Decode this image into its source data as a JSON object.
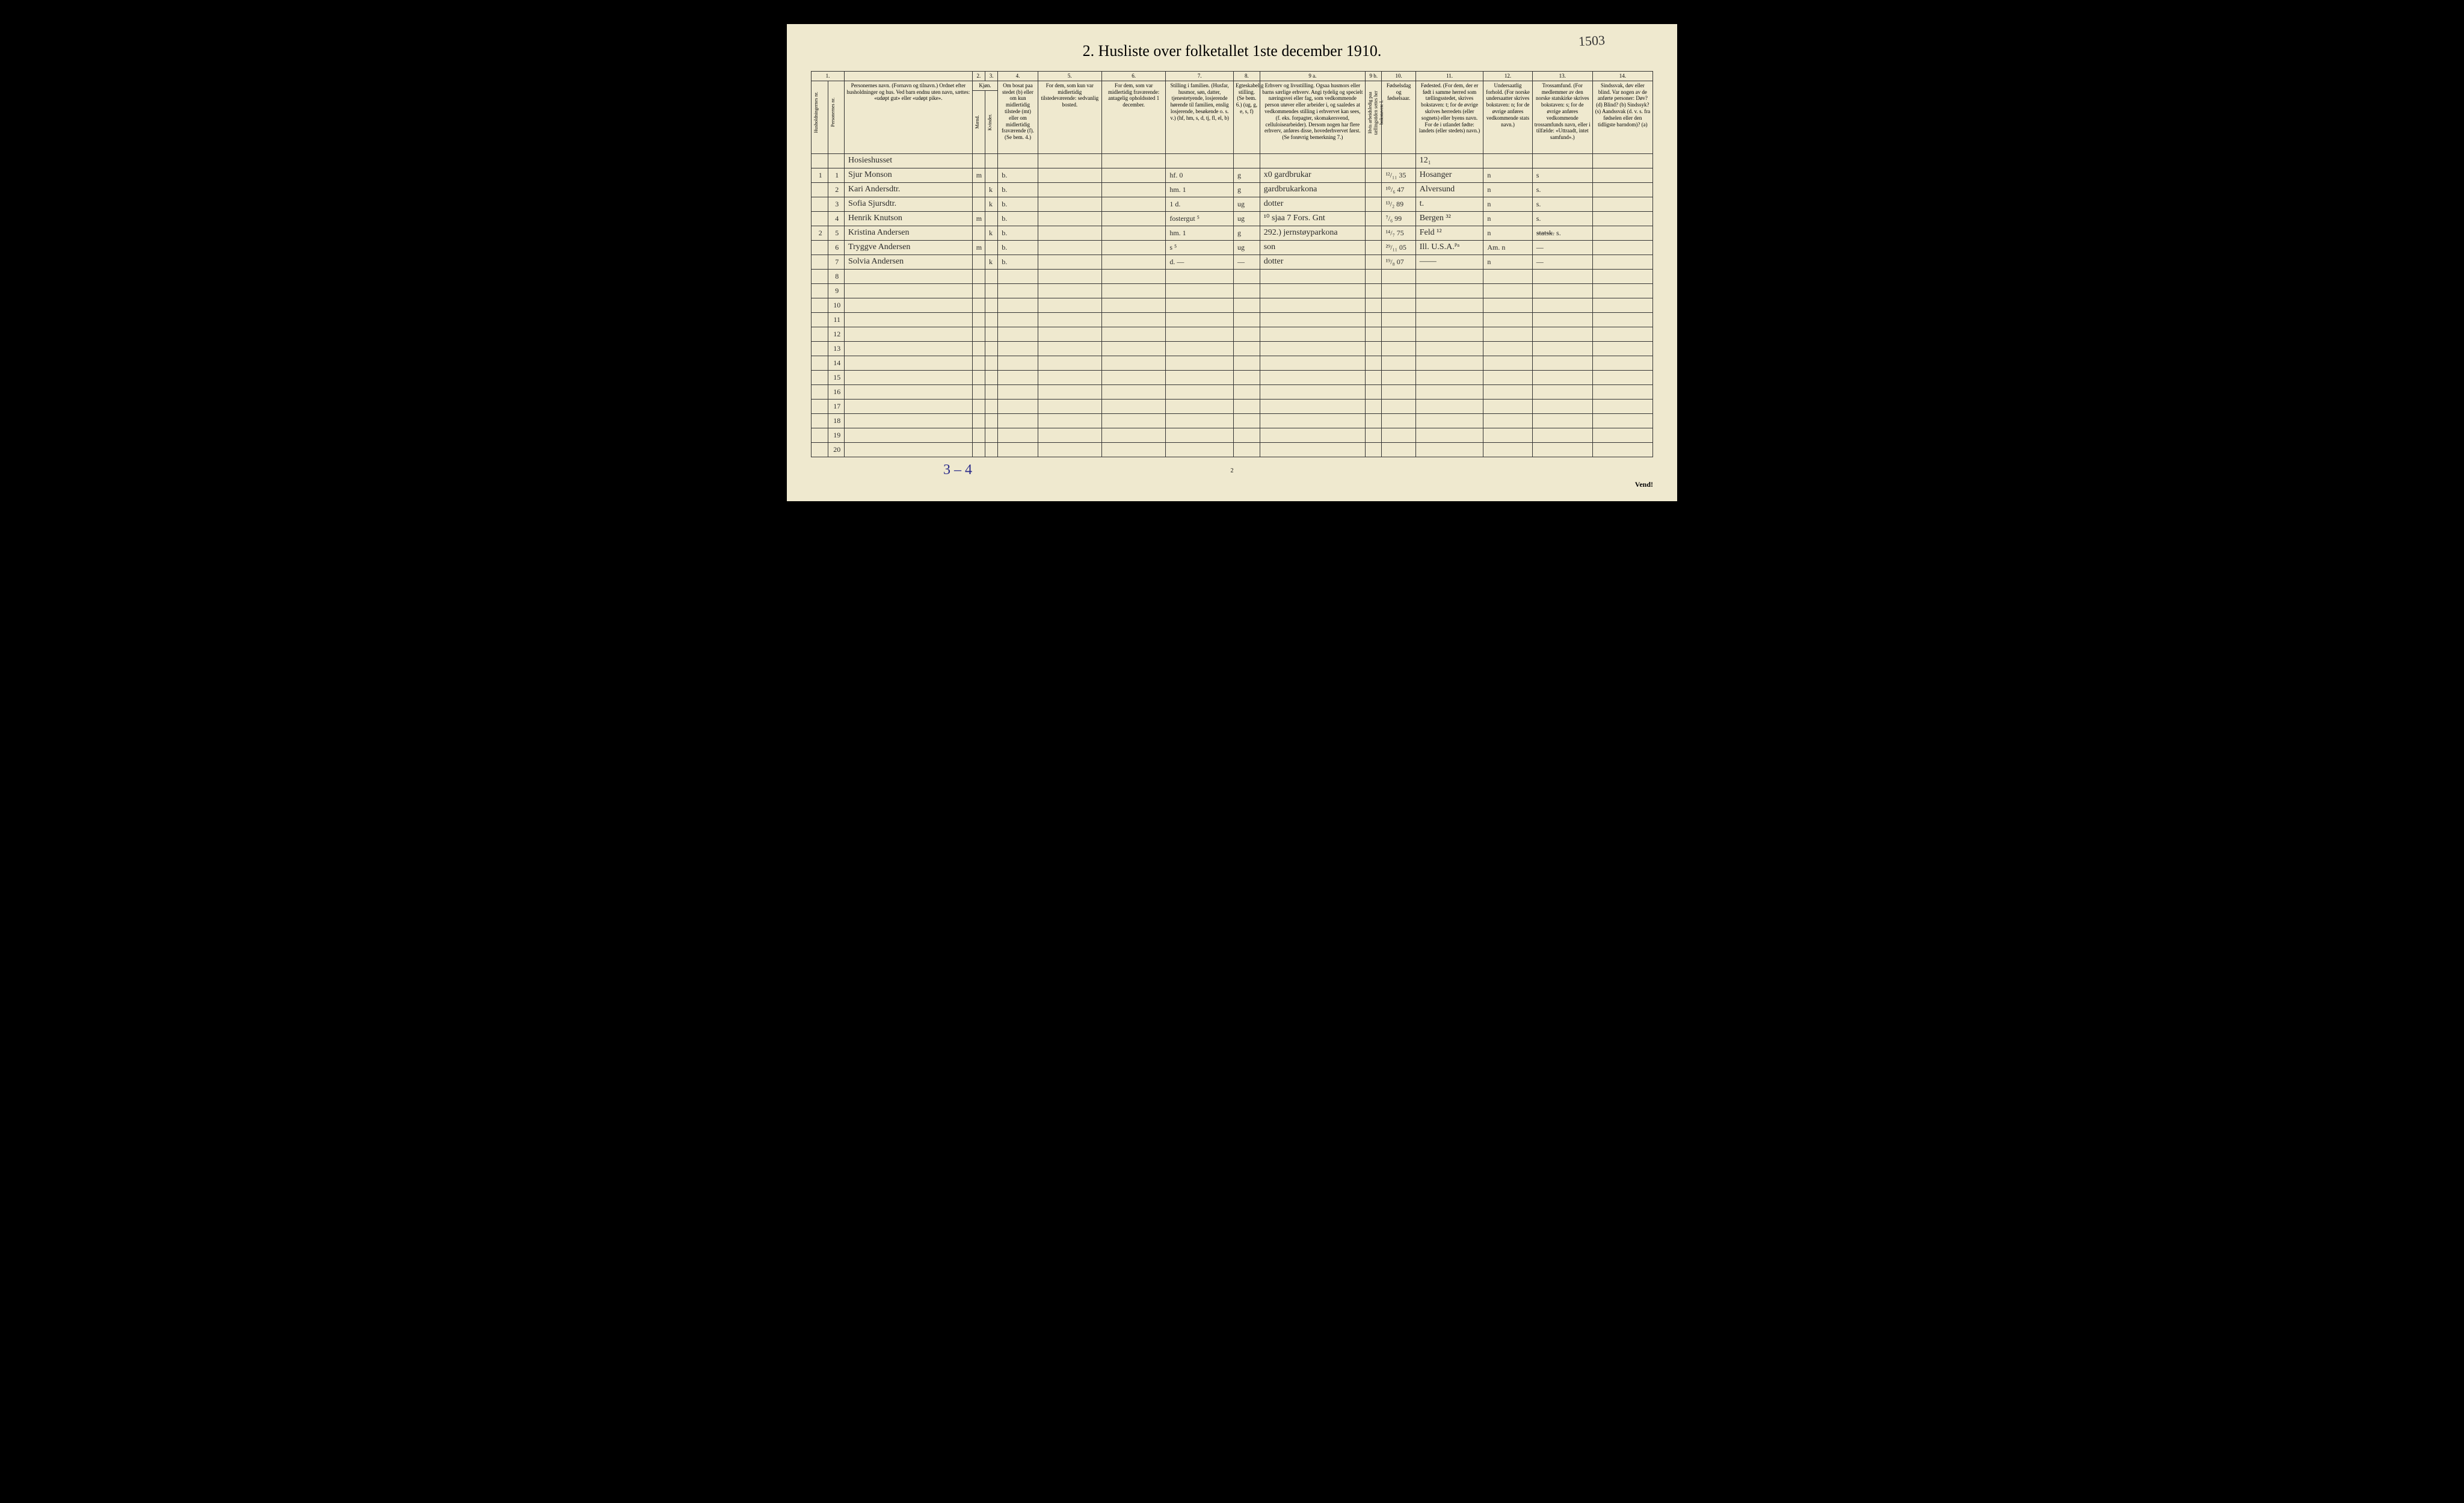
{
  "annotation_top_right": "1503",
  "title": "2.  Husliste over folketallet 1ste december 1910.",
  "col_numbers": [
    "1.",
    "",
    "2.",
    "3.",
    "4.",
    "5.",
    "6.",
    "7.",
    "8.",
    "9 a.",
    "9 b.",
    "10.",
    "11.",
    "12.",
    "13.",
    "14."
  ],
  "header_col1a": "Husholdningernes nr.",
  "header_col1b": "Personernes nr.",
  "header_col2": "Personernes navn.\n(Fornavn og tilnavn.)\nOrdnet efter husholdninger og hus.\nVed barn endnu uten navn, sættes: «udøpt gut» eller «udøpt pike».",
  "header_col3_top": "Kjøn.",
  "header_col3_m": "Mænd.",
  "header_col3_k": "Kvinder.",
  "header_col3_mk": "m. | k.",
  "header_col4": "Om bosat paa stedet (b) eller om kun midlertidig tilstede (mt) eller om midlertidig fraværende (f).\n(Se bem. 4.)",
  "header_col5": "For dem, som kun var midlertidig tilstedeværende:\nsedvanlig bosted.",
  "header_col6": "For dem, som var midlertidig fraværende:\nantagelig opholdssted 1 december.",
  "header_col7": "Stilling i familien.\n(Husfar, husmor, søn, datter, tjenestetyende, losjerende hørende til familien, enslig losjerende, besøkende o. s. v.)\n(hf, hm, s, d, tj, fl, el, b)",
  "header_col8": "Egteskabelig stilling.\n(Se bem. 6.)\n(ug, g, e, s, f)",
  "header_col9a": "Erhverv og livsstilling.\nOgsaa husmors eller barns særlige erhverv.\nAngi tydelig og specielt næringsvei eller fag, som vedkommende person utøver eller arbeider i, og saaledes at vedkommendes stilling i erhvervet kan sees, (f. eks. forpagter, skomakersvend, celluloisearbeider). Dersom nogen har flere erhverv, anføres disse, hovederhvervet først.\n(Se forøvrig bemerkning 7.)",
  "header_col9b": "Hvis arbeidsledig paa tællingstiden settes her bokstaven: l.",
  "header_col10": "Fødselsdag og fødselsaar.",
  "header_col11": "Fødested.\n(For dem, der er født i samme herred som tællingsstedet, skrives bokstaven: t; for de øvrige skrives herredets (eller sognets) eller byens navn. For de i utlandet fødte: landets (eller stedets) navn.)",
  "header_col12": "Undersaatlig forhold.\n(For norske undersaatter skrives bokstaven: n; for de øvrige anføres vedkommende stats navn.)",
  "header_col13": "Trossamfund.\n(For medlemmer av den norske statskirke skrives bokstaven: s; for de øvrige anføres vedkommende trossamfunds navn, eller i tilfælde: «Uttraadt, intet samfund».)",
  "header_col14": "Sindssvak, døv eller blind.\nVar nogen av de anførte personer:\nDøv? (d)\nBlind? (b)\nSindssyk? (s)\nAandssvak (d. v. s. fra fødselen eller den tidligste barndom)? (a)",
  "rows": [
    {
      "h": "",
      "p": "",
      "name": "Hosieshusset",
      "m": "",
      "k": "",
      "b": "",
      "c5": "",
      "c6": "",
      "c7": "",
      "c8": "",
      "c9a": "",
      "c9b": "",
      "c10": "",
      "c11": "12₁",
      "c12": "",
      "c13": "",
      "c14": ""
    },
    {
      "h": "1",
      "p": "1",
      "name": "Sjur Monson",
      "m": "m",
      "k": "",
      "b": "b.",
      "c5": "",
      "c6": "",
      "c7": "hf.   0",
      "c8": "g",
      "c9a": "x0 gardbrukar",
      "c9b": "",
      "c10": "¹²/₁₁ 35",
      "c11": "Hosanger",
      "c12": "n",
      "c13": "s",
      "c14": ""
    },
    {
      "h": "",
      "p": "2",
      "name": "Kari Andersdtr.",
      "m": "",
      "k": "k",
      "b": "b.",
      "c5": "",
      "c6": "",
      "c7": "hm.   1",
      "c8": "g",
      "c9a": "gardbrukarkona",
      "c9b": "",
      "c10": "¹⁰/₆ 47",
      "c11": "Alversund",
      "c12": "n",
      "c13": "s.",
      "c14": ""
    },
    {
      "h": "",
      "p": "3",
      "name": "Sofia Sjursdtr.",
      "m": "",
      "k": "k",
      "b": "b.",
      "c5": "",
      "c6": "",
      "c7": "1 d.",
      "c8": "ug",
      "c9a": "dotter",
      "c9b": "",
      "c10": "¹³/₂ 89",
      "c11": "t.",
      "c12": "n",
      "c13": "s.",
      "c14": ""
    },
    {
      "h": "",
      "p": "4",
      "name": "Henrik Knutson",
      "m": "m",
      "k": "",
      "b": "b.",
      "c5": "",
      "c6": "",
      "c7": "fostergut ⁵",
      "c8": "ug",
      "c9a": "¹⁰ sjaa  7  Fors. Gnt",
      "c9b": "",
      "c10": "⁷/₆ 99",
      "c11": "Bergen ³²",
      "c12": "n",
      "c13": "s.",
      "c14": ""
    },
    {
      "h": "2",
      "p": "5",
      "name": "Kristina Andersen",
      "m": "",
      "k": "k",
      "b": "b.",
      "c5": "",
      "c6": "",
      "c7": "hm.  1",
      "c8": "g",
      "c9a": "292.)  jernstøyparkona",
      "c9b": "",
      "c10": "¹⁴/₇ 75",
      "c11": "Feld ¹²",
      "c12": "n",
      "c13": "s̶t̶a̶t̶s̶k̶. s.",
      "c14": ""
    },
    {
      "h": "",
      "p": "6",
      "name": "Tryggve Andersen",
      "m": "m",
      "k": "",
      "b": "b.",
      "c5": "",
      "c6": "",
      "c7": "s     ⁵",
      "c8": "ug",
      "c9a": "son",
      "c9b": "",
      "c10": "²⁹/₁₁ 05",
      "c11": "Ill. U.S.A.ᴾᵃ",
      "c12": "Am. n",
      "c13": "—",
      "c14": ""
    },
    {
      "h": "",
      "p": "7",
      "name": "Solvia Andersen",
      "m": "",
      "k": "k",
      "b": "b.",
      "c5": "",
      "c6": "",
      "c7": "d.    —",
      "c8": "—",
      "c9a": "dotter",
      "c9b": "",
      "c10": "¹⁹/₈ 07",
      "c11": "——",
      "c12": "n",
      "c13": "—",
      "c14": ""
    }
  ],
  "empty_rows": [
    "8",
    "9",
    "10",
    "11",
    "12",
    "13",
    "14",
    "15",
    "16",
    "17",
    "18",
    "19",
    "20"
  ],
  "footer_handwritten": "3 – 4",
  "page_number_bottom": "2",
  "vend": "Vend!",
  "colors": {
    "paper": "#efe9cf",
    "ink": "#2a2a2a",
    "border": "#333333",
    "pencil_blue": "#2a2b8a",
    "red_ink": "#b03030"
  },
  "col_widths_pct": [
    2.2,
    2.2,
    17,
    1.7,
    1.7,
    5.3,
    8.5,
    8.5,
    9,
    3.5,
    14,
    2.2,
    4.5,
    9,
    6.5,
    8,
    8
  ]
}
